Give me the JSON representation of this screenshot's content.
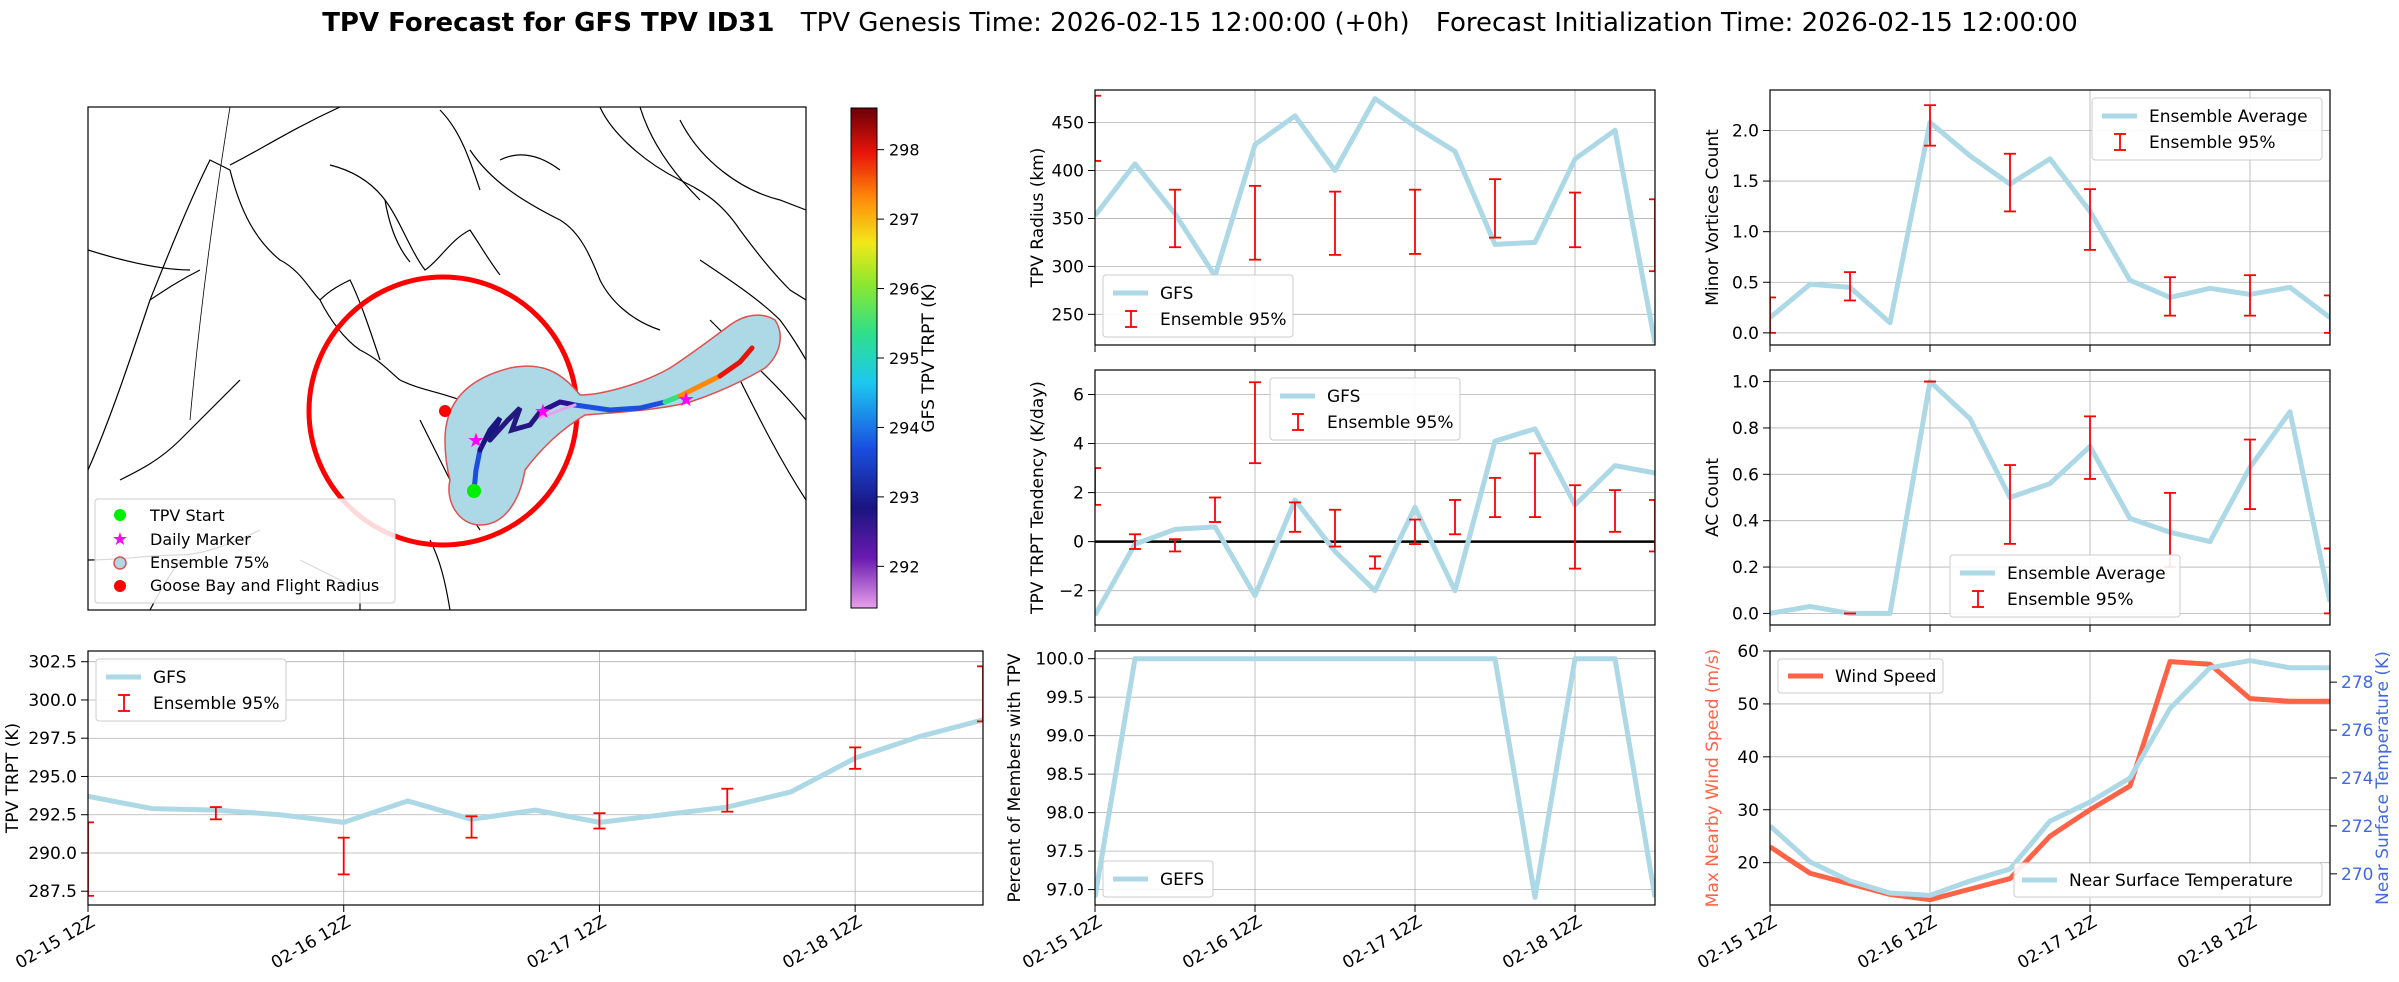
{
  "title": {
    "bold": "TPV Forecast for GFS TPV ID31",
    "genesis": "TPV Genesis Time: 2026-02-15 12:00:00 (+0h)",
    "init": "Forecast Initialization Time: 2026-02-15 12:00:00"
  },
  "colors": {
    "gfs_line": "#add8e6",
    "error_bar": "#ff0000",
    "wind": "#ff6347",
    "temp_axis": "#4169e1",
    "ensemble_fill": "#add8e6",
    "ensemble_edge": "#ff0000",
    "goose_bay": "#ff0000"
  },
  "map": {
    "legend": [
      "TPV Start",
      "Daily Marker",
      "Ensemble 75%",
      "Goose Bay and Flight Radius"
    ],
    "colorbar": {
      "label": "GFS TPV TRPT (K)",
      "ticks": [
        "298",
        "297",
        "296",
        "295",
        "294",
        "293",
        "292"
      ],
      "min": 291.4,
      "max": 298.6
    }
  },
  "x_labels": [
    "02-15 12Z",
    "02-16 12Z",
    "02-17 12Z",
    "02-18 12Z"
  ],
  "chart_data": [
    {
      "id": "radius",
      "type": "line",
      "ylabel": "TPV Radius (km)",
      "ylim": [
        218,
        484
      ],
      "yticks": [
        250,
        300,
        350,
        400,
        450
      ],
      "legend": [
        "GFS",
        "Ensemble 95%"
      ],
      "legend_pos": "bottom-left",
      "x": [
        0,
        1,
        2,
        3,
        4,
        5,
        6,
        7,
        8,
        9,
        10,
        11,
        12,
        13,
        14
      ],
      "series": [
        {
          "name": "GFS",
          "values": [
            353,
            407,
            355,
            290,
            427,
            457,
            400,
            475,
            446,
            420,
            323,
            325,
            412,
            442,
            220
          ]
        }
      ],
      "errorbars": [
        {
          "x": 0,
          "lo": 410,
          "hi": 478
        },
        {
          "x": 2,
          "lo": 320,
          "hi": 380
        },
        {
          "x": 4,
          "lo": 307,
          "hi": 384
        },
        {
          "x": 6,
          "lo": 312,
          "hi": 378
        },
        {
          "x": 8,
          "lo": 313,
          "hi": 380
        },
        {
          "x": 10,
          "lo": 330,
          "hi": 391
        },
        {
          "x": 12,
          "lo": 320,
          "hi": 377
        },
        {
          "x": 14,
          "lo": 295,
          "hi": 370
        }
      ]
    },
    {
      "id": "minor",
      "type": "line",
      "ylabel": "Minor Vortices Count",
      "ylim": [
        -0.12,
        2.4
      ],
      "yticks": [
        0.0,
        0.5,
        1.0,
        1.5,
        2.0
      ],
      "legend": [
        "Ensemble Average",
        "Ensemble 95%"
      ],
      "legend_pos": "top-right",
      "x": [
        0,
        1,
        2,
        3,
        4,
        5,
        6,
        7,
        8,
        9,
        10,
        11,
        12,
        13,
        14
      ],
      "series": [
        {
          "name": "Ensemble Average",
          "values": [
            0.15,
            0.48,
            0.45,
            0.1,
            2.08,
            1.75,
            1.47,
            1.72,
            1.2,
            0.52,
            0.35,
            0.44,
            0.38,
            0.45,
            0.15
          ]
        }
      ],
      "errorbars": [
        {
          "x": 0,
          "lo": 0.0,
          "hi": 0.35
        },
        {
          "x": 2,
          "lo": 0.32,
          "hi": 0.6
        },
        {
          "x": 4,
          "lo": 1.85,
          "hi": 2.25
        },
        {
          "x": 6,
          "lo": 1.2,
          "hi": 1.77
        },
        {
          "x": 8,
          "lo": 0.82,
          "hi": 1.42
        },
        {
          "x": 10,
          "lo": 0.17,
          "hi": 0.55
        },
        {
          "x": 12,
          "lo": 0.17,
          "hi": 0.57
        },
        {
          "x": 14,
          "lo": 0.0,
          "hi": 0.37
        }
      ]
    },
    {
      "id": "tendency",
      "type": "line",
      "ylabel": "TPV TRPT Tendency (K/day)",
      "ylim": [
        -3.4,
        7.0
      ],
      "yticks": [
        -2,
        0,
        2,
        4,
        6
      ],
      "zero_line": true,
      "legend": [
        "GFS",
        "Ensemble 95%"
      ],
      "legend_pos": "top-center",
      "x": [
        0,
        1,
        2,
        3,
        4,
        5,
        6,
        7,
        8,
        9,
        10,
        11,
        12,
        13,
        14
      ],
      "series": [
        {
          "name": "GFS",
          "values": [
            -3.0,
            -0.1,
            0.5,
            0.6,
            -2.2,
            1.7,
            -0.4,
            -2.0,
            1.4,
            -2.0,
            4.1,
            4.6,
            1.5,
            3.1,
            2.8
          ]
        }
      ],
      "errorbars": [
        {
          "x": 0,
          "lo": 1.5,
          "hi": 3.0
        },
        {
          "x": 1,
          "lo": -0.3,
          "hi": 0.3
        },
        {
          "x": 2,
          "lo": -0.4,
          "hi": 0.1
        },
        {
          "x": 3,
          "lo": 0.8,
          "hi": 1.8
        },
        {
          "x": 4,
          "lo": 3.2,
          "hi": 6.5
        },
        {
          "x": 5,
          "lo": 0.4,
          "hi": 1.6
        },
        {
          "x": 6,
          "lo": -0.2,
          "hi": 1.3
        },
        {
          "x": 7,
          "lo": -1.1,
          "hi": -0.6
        },
        {
          "x": 8,
          "lo": -0.1,
          "hi": 0.9
        },
        {
          "x": 9,
          "lo": 0.3,
          "hi": 1.7
        },
        {
          "x": 10,
          "lo": 1.0,
          "hi": 2.6
        },
        {
          "x": 11,
          "lo": 1.0,
          "hi": 3.6
        },
        {
          "x": 12,
          "lo": -1.1,
          "hi": 2.3
        },
        {
          "x": 13,
          "lo": 0.4,
          "hi": 2.1
        },
        {
          "x": 14,
          "lo": -0.4,
          "hi": 1.7
        }
      ]
    },
    {
      "id": "ac",
      "type": "line",
      "ylabel": "AC Count",
      "ylim": [
        -0.05,
        1.05
      ],
      "yticks": [
        0.0,
        0.2,
        0.4,
        0.6,
        0.8,
        1.0
      ],
      "legend": [
        "Ensemble Average",
        "Ensemble 95%"
      ],
      "legend_pos": "bottom-center",
      "x": [
        0,
        1,
        2,
        3,
        4,
        5,
        6,
        7,
        8,
        9,
        10,
        11,
        12,
        13,
        14
      ],
      "series": [
        {
          "name": "Ensemble Average",
          "values": [
            0.0,
            0.03,
            0.0,
            0.0,
            1.0,
            0.84,
            0.5,
            0.56,
            0.72,
            0.41,
            0.35,
            0.31,
            0.63,
            0.87,
            0.05
          ]
        }
      ],
      "errorbars": [
        {
          "x": 2,
          "lo": 0.0,
          "hi": 0.0
        },
        {
          "x": 4,
          "lo": 1.0,
          "hi": 1.0
        },
        {
          "x": 6,
          "lo": 0.3,
          "hi": 0.64
        },
        {
          "x": 8,
          "lo": 0.58,
          "hi": 0.85
        },
        {
          "x": 10,
          "lo": 0.2,
          "hi": 0.52
        },
        {
          "x": 12,
          "lo": 0.45,
          "hi": 0.75
        },
        {
          "x": 14,
          "lo": 0.0,
          "hi": 0.28
        }
      ]
    },
    {
      "id": "trpt",
      "type": "line",
      "ylabel": "TPV TRPT (K)",
      "ylim": [
        286.6,
        303.2
      ],
      "yticks": [
        287.5,
        290.0,
        292.5,
        295.0,
        297.5,
        300.0,
        302.5
      ],
      "legend": [
        "GFS",
        "Ensemble 95%"
      ],
      "legend_pos": "top-left",
      "x": [
        0,
        1,
        2,
        3,
        4,
        5,
        6,
        7,
        8,
        9,
        10,
        11,
        12,
        13,
        14
      ],
      "series": [
        {
          "name": "GFS",
          "values": [
            293.7,
            292.9,
            292.8,
            292.5,
            292.0,
            293.4,
            292.2,
            292.8,
            292.0,
            292.5,
            293.0,
            294.0,
            296.2,
            297.6,
            298.7
          ]
        }
      ],
      "errorbars": [
        {
          "x": 0,
          "lo": 287.2,
          "hi": 292.0
        },
        {
          "x": 2,
          "lo": 292.2,
          "hi": 293.0
        },
        {
          "x": 4,
          "lo": 288.6,
          "hi": 291.0
        },
        {
          "x": 6,
          "lo": 291.0,
          "hi": 292.4
        },
        {
          "x": 8,
          "lo": 291.6,
          "hi": 292.6
        },
        {
          "x": 10,
          "lo": 292.7,
          "hi": 294.2
        },
        {
          "x": 12,
          "lo": 295.5,
          "hi": 296.9
        },
        {
          "x": 14,
          "lo": 298.6,
          "hi": 302.2
        }
      ]
    },
    {
      "id": "percent",
      "type": "line",
      "ylabel": "Percent of Members with TPV",
      "ylim": [
        96.8,
        100.1
      ],
      "yticks": [
        97.0,
        97.5,
        98.0,
        98.5,
        99.0,
        99.5,
        100.0
      ],
      "legend": [
        "GEFS"
      ],
      "legend_pos": "bottom-left",
      "x": [
        0,
        1,
        2,
        3,
        4,
        5,
        6,
        7,
        8,
        9,
        10,
        11,
        12,
        13,
        14
      ],
      "series": [
        {
          "name": "GEFS",
          "values": [
            96.9,
            100,
            100,
            100,
            100,
            100,
            100,
            100,
            100,
            100,
            100,
            96.9,
            100,
            100,
            96.9
          ]
        }
      ],
      "errorbars": []
    },
    {
      "id": "wind",
      "type": "line",
      "ylabel": "Max Nearby Wind Speed (m/s)",
      "ylim": [
        12,
        60
      ],
      "yticks": [
        20,
        30,
        40,
        50,
        60
      ],
      "y2label": "Near Surface Temperature (K)",
      "y2lim": [
        268.7,
        279.3
      ],
      "y2ticks": [
        270,
        272,
        274,
        276,
        278
      ],
      "legend": [
        "Wind Speed",
        "Near Surface Temperature"
      ],
      "x": [
        0,
        1,
        2,
        3,
        4,
        5,
        6,
        7,
        8,
        9,
        10,
        11,
        12,
        13,
        14
      ],
      "series": [
        {
          "name": "Wind Speed",
          "axis": "left",
          "values": [
            23,
            18,
            16,
            14,
            13,
            15,
            17,
            25,
            30,
            34.5,
            58,
            57.5,
            51,
            50.5,
            50.5
          ]
        },
        {
          "name": "Near Surface Temperature",
          "axis": "right",
          "values": [
            272,
            270.5,
            269.7,
            269.2,
            269.1,
            269.7,
            270.2,
            272.2,
            273,
            274,
            276.9,
            278.6,
            278.9,
            278.6,
            278.6
          ]
        }
      ],
      "errorbars": []
    }
  ]
}
